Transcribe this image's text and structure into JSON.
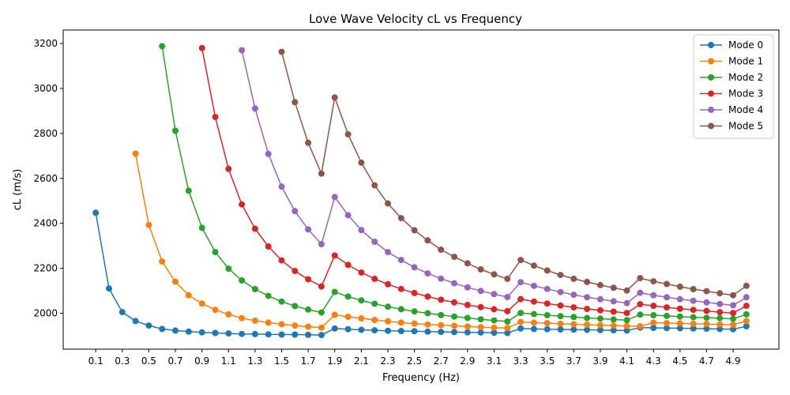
{
  "chart_data": {
    "type": "line",
    "title": "Love Wave Velocity cL vs Frequency",
    "xlabel": "Frequency (Hz)",
    "ylabel": "cL (m/s)",
    "xlim": [
      -0.145,
      5.245
    ],
    "ylim": [
      1840,
      3260
    ],
    "xticks": [
      0.1,
      0.3,
      0.5,
      0.7,
      0.9,
      1.1,
      1.3,
      1.5,
      1.7,
      1.9,
      2.1,
      2.3,
      2.5,
      2.7,
      2.9,
      3.1,
      3.3,
      3.5,
      3.7,
      3.9,
      4.1,
      4.3,
      4.5,
      4.7,
      4.9
    ],
    "xtick_labels": [
      "0.1",
      "0.3",
      "0.5",
      "0.7",
      "0.9",
      "1.1",
      "1.3",
      "1.5",
      "1.7",
      "1.9",
      "2.1",
      "2.3",
      "2.5",
      "2.7",
      "2.9",
      "3.1",
      "3.3",
      "3.5",
      "3.7",
      "3.9",
      "4.1",
      "4.3",
      "4.5",
      "4.7",
      "4.9"
    ],
    "yticks": [
      2000,
      2200,
      2400,
      2600,
      2800,
      3000,
      3200
    ],
    "ytick_labels": [
      "2000",
      "2200",
      "2400",
      "2600",
      "2800",
      "3000",
      "3200"
    ],
    "grid": false,
    "legend_position": "top-right",
    "series": [
      {
        "name": "Mode 0",
        "color": "#1f77b4",
        "x": [
          0.1,
          0.2,
          0.3,
          0.4,
          0.5,
          0.6,
          0.7,
          0.8,
          0.9,
          1.0,
          1.1,
          1.2,
          1.3,
          1.4,
          1.5,
          1.6,
          1.7,
          1.8,
          1.9,
          2.0,
          2.1,
          2.2,
          2.3,
          2.4,
          2.5,
          2.6,
          2.7,
          2.8,
          2.9,
          3.0,
          3.1,
          3.2,
          3.3,
          3.4,
          3.5,
          3.6,
          3.7,
          3.8,
          3.9,
          4.0,
          4.1,
          4.2,
          4.3,
          4.4,
          4.5,
          4.6,
          4.7,
          4.8,
          4.9,
          5.0
        ],
        "y": [
          2447,
          2110,
          2005,
          1965,
          1945,
          1930,
          1923,
          1918,
          1915,
          1912,
          1910,
          1908,
          1907,
          1906,
          1905,
          1905,
          1904,
          1903,
          1932,
          1929,
          1926,
          1924,
          1922,
          1921,
          1920,
          1918,
          1917,
          1916,
          1915,
          1914,
          1913,
          1912,
          1932,
          1930,
          1929,
          1928,
          1927,
          1926,
          1925,
          1924,
          1923,
          1936,
          1935,
          1934,
          1933,
          1932,
          1931,
          1930,
          1929,
          1942
        ]
      },
      {
        "name": "Mode 1",
        "color": "#ff7f0e",
        "x": [
          0.4,
          0.5,
          0.6,
          0.7,
          0.8,
          0.9,
          1.0,
          1.1,
          1.2,
          1.3,
          1.4,
          1.5,
          1.6,
          1.7,
          1.8,
          1.9,
          2.0,
          2.1,
          2.2,
          2.3,
          2.4,
          2.5,
          2.6,
          2.7,
          2.8,
          2.9,
          3.0,
          3.1,
          3.2,
          3.3,
          3.4,
          3.5,
          3.6,
          3.7,
          3.8,
          3.9,
          4.0,
          4.1,
          4.2,
          4.3,
          4.4,
          4.5,
          4.6,
          4.7,
          4.8,
          4.9,
          5.0
        ],
        "y": [
          2710,
          2393,
          2230,
          2140,
          2080,
          2043,
          2015,
          1995,
          1978,
          1967,
          1958,
          1951,
          1945,
          1940,
          1936,
          1993,
          1984,
          1977,
          1970,
          1964,
          1958,
          1954,
          1950,
          1947,
          1944,
          1941,
          1938,
          1936,
          1934,
          1961,
          1958,
          1956,
          1953,
          1951,
          1949,
          1947,
          1945,
          1943,
          1942,
          1958,
          1956,
          1955,
          1953,
          1952,
          1950,
          1949,
          1965
        ]
      },
      {
        "name": "Mode 2",
        "color": "#2ca02c",
        "x": [
          0.6,
          0.7,
          0.8,
          0.9,
          1.0,
          1.1,
          1.2,
          1.3,
          1.4,
          1.5,
          1.6,
          1.7,
          1.8,
          1.9,
          2.0,
          2.1,
          2.2,
          2.3,
          2.4,
          2.5,
          2.6,
          2.7,
          2.8,
          2.9,
          3.0,
          3.1,
          3.2,
          3.3,
          3.4,
          3.5,
          3.6,
          3.7,
          3.8,
          3.9,
          4.0,
          4.1,
          4.2,
          4.3,
          4.4,
          4.5,
          4.6,
          4.7,
          4.8,
          4.9,
          5.0
        ],
        "y": [
          3188,
          2812,
          2545,
          2380,
          2272,
          2198,
          2146,
          2107,
          2077,
          2052,
          2032,
          2016,
          2003,
          2095,
          2074,
          2057,
          2042,
          2029,
          2018,
          2008,
          2000,
          1992,
          1985,
          1979,
          1973,
          1968,
          1963,
          2001,
          1996,
          1991,
          1987,
          1983,
          1979,
          1976,
          1972,
          1969,
          1994,
          1991,
          1988,
          1985,
          1982,
          1980,
          1978,
          1975,
          1995
        ]
      },
      {
        "name": "Mode 3",
        "color": "#d62728",
        "x": [
          0.9,
          1.0,
          1.1,
          1.2,
          1.3,
          1.4,
          1.5,
          1.6,
          1.7,
          1.8,
          1.9,
          2.0,
          2.1,
          2.2,
          2.3,
          2.4,
          2.5,
          2.6,
          2.7,
          2.8,
          2.9,
          3.0,
          3.1,
          3.2,
          3.3,
          3.4,
          3.5,
          3.6,
          3.7,
          3.8,
          3.9,
          4.0,
          4.1,
          4.2,
          4.3,
          4.4,
          4.5,
          4.6,
          4.7,
          4.8,
          4.9,
          5.0
        ],
        "y": [
          3180,
          2873,
          2642,
          2484,
          2376,
          2297,
          2235,
          2188,
          2151,
          2119,
          2257,
          2215,
          2181,
          2153,
          2129,
          2108,
          2090,
          2074,
          2060,
          2048,
          2037,
          2027,
          2018,
          2009,
          2063,
          2052,
          2043,
          2034,
          2026,
          2019,
          2013,
          2007,
          2001,
          2040,
          2033,
          2026,
          2020,
          2015,
          2010,
          2005,
          2001,
          2033
        ]
      },
      {
        "name": "Mode 4",
        "color": "#9467bd",
        "x": [
          1.2,
          1.3,
          1.4,
          1.5,
          1.6,
          1.7,
          1.8,
          1.9,
          2.0,
          2.1,
          2.2,
          2.3,
          2.4,
          2.5,
          2.6,
          2.7,
          2.8,
          2.9,
          3.0,
          3.1,
          3.2,
          3.3,
          3.4,
          3.5,
          3.6,
          3.7,
          3.8,
          3.9,
          4.0,
          4.1,
          4.2,
          4.3,
          4.4,
          4.5,
          4.6,
          4.7,
          4.8,
          4.9,
          5.0
        ],
        "y": [
          3170,
          2911,
          2709,
          2563,
          2454,
          2373,
          2307,
          2517,
          2436,
          2370,
          2318,
          2272,
          2237,
          2204,
          2177,
          2154,
          2133,
          2115,
          2099,
          2085,
          2072,
          2138,
          2122,
          2108,
          2094,
          2082,
          2071,
          2062,
          2053,
          2045,
          2091,
          2080,
          2071,
          2062,
          2055,
          2048,
          2041,
          2035,
          2071
        ]
      },
      {
        "name": "Mode 5",
        "color": "#8c564b",
        "x": [
          1.5,
          1.6,
          1.7,
          1.8,
          1.9,
          2.0,
          2.1,
          2.2,
          2.3,
          2.4,
          2.5,
          2.6,
          2.7,
          2.8,
          2.9,
          3.0,
          3.1,
          3.2,
          3.3,
          3.4,
          3.5,
          3.6,
          3.7,
          3.8,
          3.9,
          4.0,
          4.1,
          4.2,
          4.3,
          4.4,
          4.5,
          4.6,
          4.7,
          4.8,
          4.9,
          5.0
        ],
        "y": [
          3163,
          2939,
          2758,
          2621,
          2960,
          2796,
          2670,
          2569,
          2488,
          2423,
          2369,
          2324,
          2283,
          2251,
          2222,
          2195,
          2173,
          2153,
          2237,
          2212,
          2190,
          2170,
          2153,
          2139,
          2125,
          2113,
          2101,
          2156,
          2142,
          2130,
          2118,
          2107,
          2098,
          2089,
          2080,
          2122
        ]
      }
    ]
  }
}
